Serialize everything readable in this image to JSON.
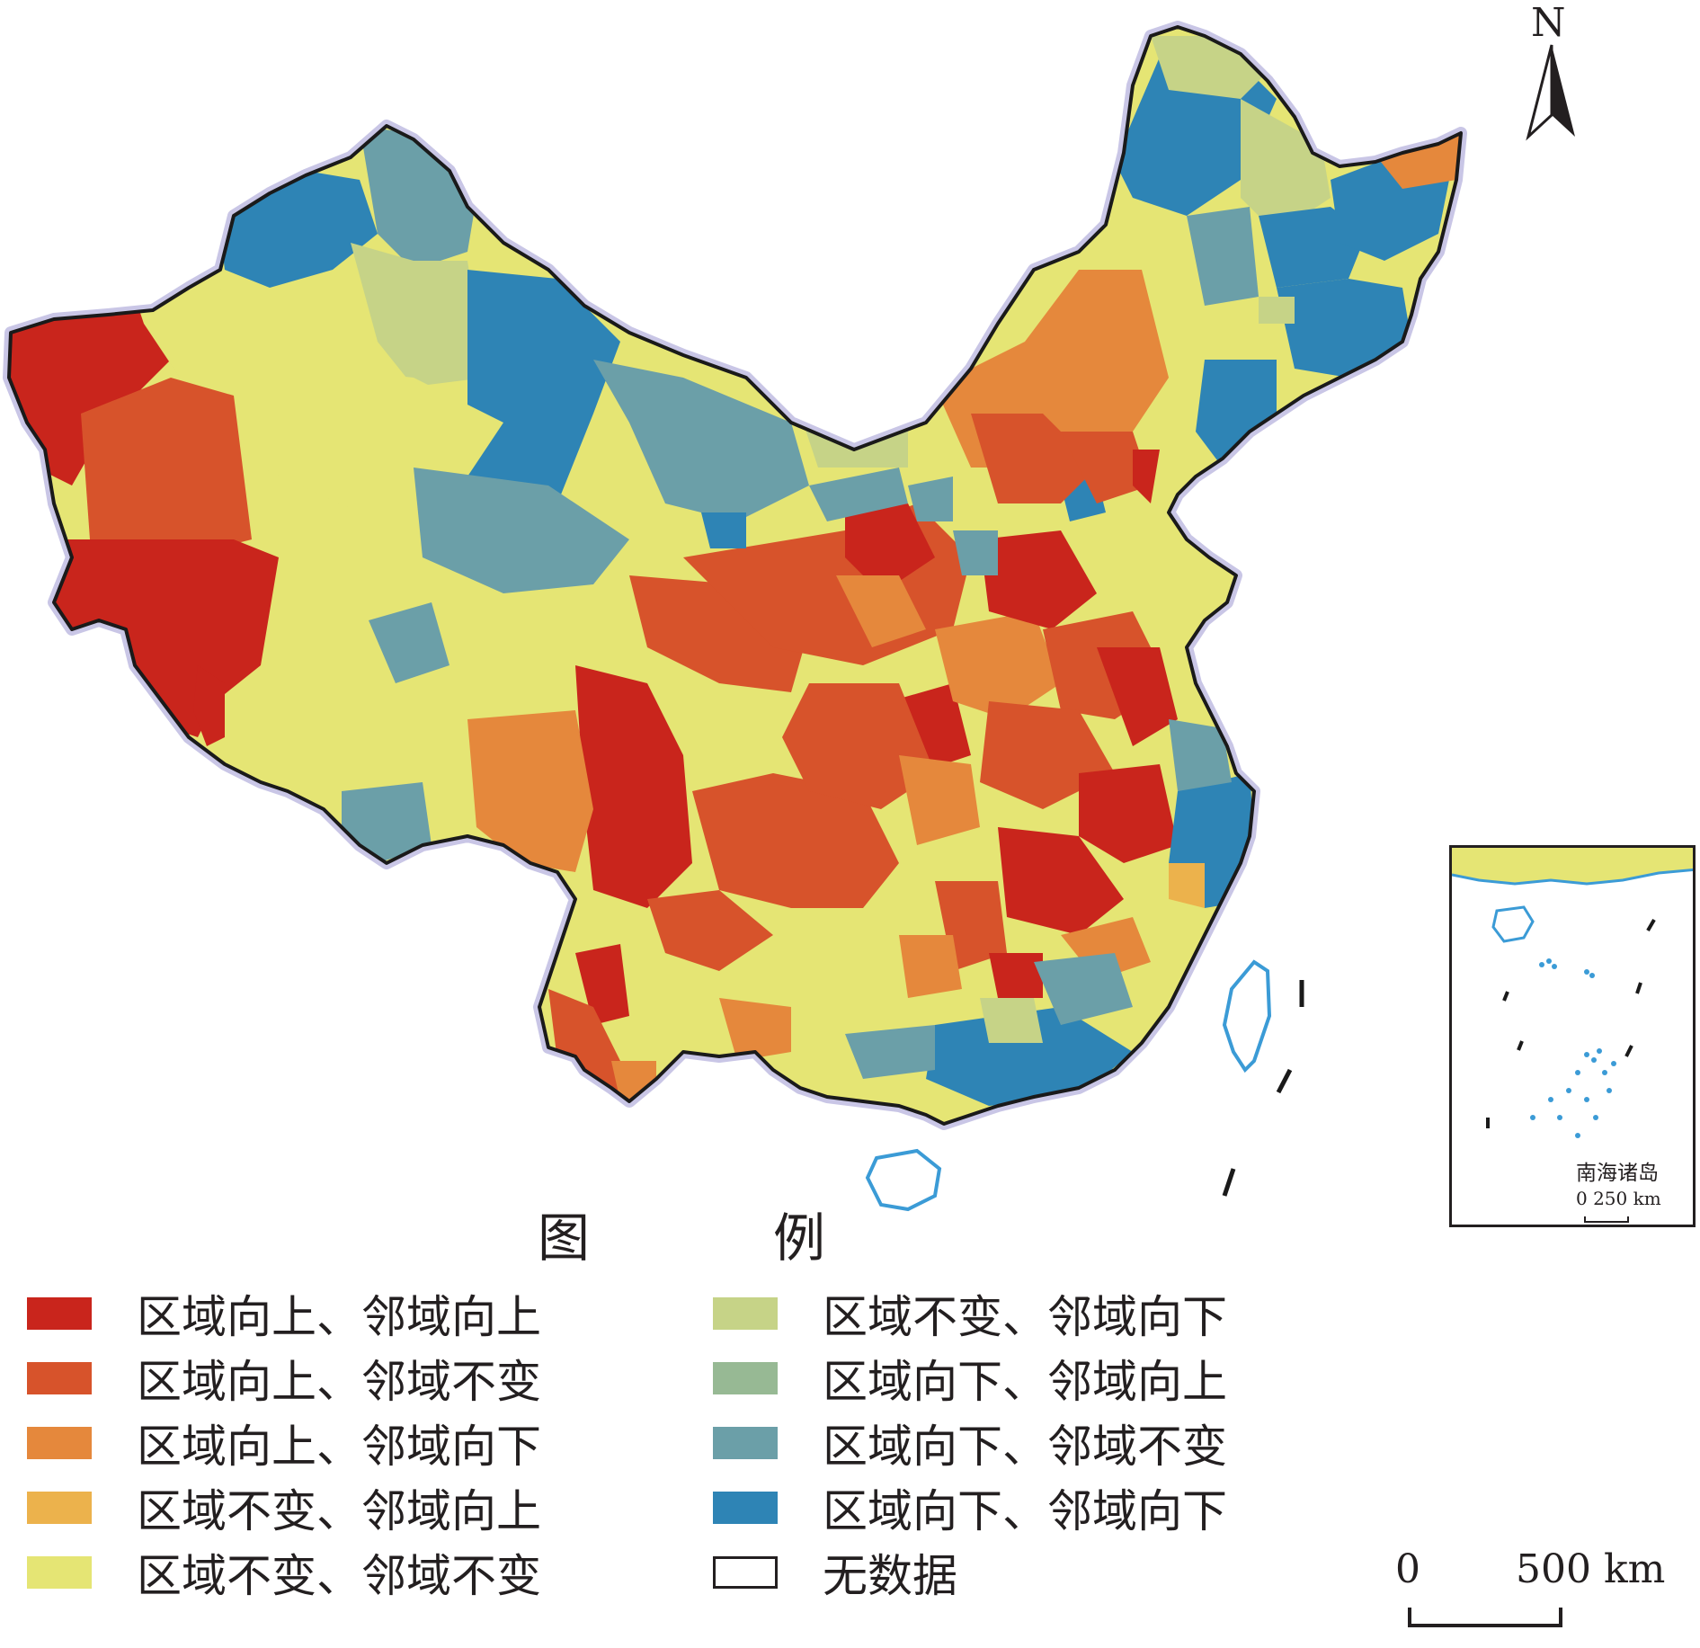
{
  "north_arrow": {
    "letter": "N"
  },
  "legend": {
    "title_left": "图",
    "title_right": "例",
    "items": [
      {
        "label": "区域向上、邻域向上",
        "color": "#c9251c"
      },
      {
        "label": "区域向上、邻域不变",
        "color": "#d7532b"
      },
      {
        "label": "区域向上、邻域向下",
        "color": "#e5883c"
      },
      {
        "label": "区域不变、邻域向上",
        "color": "#ecb24c"
      },
      {
        "label": "区域不变、邻域不变",
        "color": "#e5e574"
      },
      {
        "label": "区域不变、邻域向下",
        "color": "#c6d387"
      },
      {
        "label": "区域向下、邻域向上",
        "color": "#97b994"
      },
      {
        "label": "区域向下、邻域不变",
        "color": "#6b9fa8"
      },
      {
        "label": "区域向下、邻域向下",
        "color": "#2e84b5"
      },
      {
        "label": "无数据",
        "color": "#ffffff"
      }
    ]
  },
  "scale_bar": {
    "start": "0",
    "end": "500 km"
  },
  "inset": {
    "title": "南海诸岛",
    "scale": "0  250 km"
  },
  "colors": {
    "boundary": "#1a1a1a",
    "water": "#3b9bd6",
    "halo": "#c9c6e6"
  }
}
